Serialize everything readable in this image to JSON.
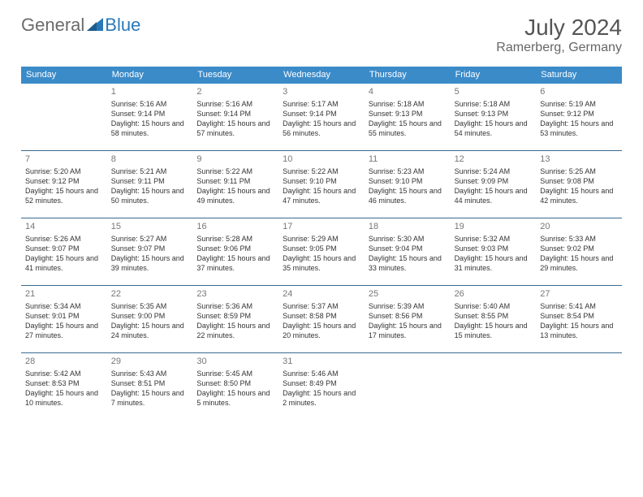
{
  "logo": {
    "general": "General",
    "blue": "Blue"
  },
  "header": {
    "title": "July 2024",
    "location": "Ramerberg, Germany"
  },
  "colors": {
    "headerBar": "#3b8bc9",
    "rowBorder": "#3b6a8f",
    "dayNum": "#777777",
    "text": "#333333"
  },
  "dow": [
    "Sunday",
    "Monday",
    "Tuesday",
    "Wednesday",
    "Thursday",
    "Friday",
    "Saturday"
  ],
  "weeks": [
    [
      null,
      {
        "n": "1",
        "sr": "Sunrise: 5:16 AM",
        "ss": "Sunset: 9:14 PM",
        "dl": "Daylight: 15 hours and 58 minutes."
      },
      {
        "n": "2",
        "sr": "Sunrise: 5:16 AM",
        "ss": "Sunset: 9:14 PM",
        "dl": "Daylight: 15 hours and 57 minutes."
      },
      {
        "n": "3",
        "sr": "Sunrise: 5:17 AM",
        "ss": "Sunset: 9:14 PM",
        "dl": "Daylight: 15 hours and 56 minutes."
      },
      {
        "n": "4",
        "sr": "Sunrise: 5:18 AM",
        "ss": "Sunset: 9:13 PM",
        "dl": "Daylight: 15 hours and 55 minutes."
      },
      {
        "n": "5",
        "sr": "Sunrise: 5:18 AM",
        "ss": "Sunset: 9:13 PM",
        "dl": "Daylight: 15 hours and 54 minutes."
      },
      {
        "n": "6",
        "sr": "Sunrise: 5:19 AM",
        "ss": "Sunset: 9:12 PM",
        "dl": "Daylight: 15 hours and 53 minutes."
      }
    ],
    [
      {
        "n": "7",
        "sr": "Sunrise: 5:20 AM",
        "ss": "Sunset: 9:12 PM",
        "dl": "Daylight: 15 hours and 52 minutes."
      },
      {
        "n": "8",
        "sr": "Sunrise: 5:21 AM",
        "ss": "Sunset: 9:11 PM",
        "dl": "Daylight: 15 hours and 50 minutes."
      },
      {
        "n": "9",
        "sr": "Sunrise: 5:22 AM",
        "ss": "Sunset: 9:11 PM",
        "dl": "Daylight: 15 hours and 49 minutes."
      },
      {
        "n": "10",
        "sr": "Sunrise: 5:22 AM",
        "ss": "Sunset: 9:10 PM",
        "dl": "Daylight: 15 hours and 47 minutes."
      },
      {
        "n": "11",
        "sr": "Sunrise: 5:23 AM",
        "ss": "Sunset: 9:10 PM",
        "dl": "Daylight: 15 hours and 46 minutes."
      },
      {
        "n": "12",
        "sr": "Sunrise: 5:24 AM",
        "ss": "Sunset: 9:09 PM",
        "dl": "Daylight: 15 hours and 44 minutes."
      },
      {
        "n": "13",
        "sr": "Sunrise: 5:25 AM",
        "ss": "Sunset: 9:08 PM",
        "dl": "Daylight: 15 hours and 42 minutes."
      }
    ],
    [
      {
        "n": "14",
        "sr": "Sunrise: 5:26 AM",
        "ss": "Sunset: 9:07 PM",
        "dl": "Daylight: 15 hours and 41 minutes."
      },
      {
        "n": "15",
        "sr": "Sunrise: 5:27 AM",
        "ss": "Sunset: 9:07 PM",
        "dl": "Daylight: 15 hours and 39 minutes."
      },
      {
        "n": "16",
        "sr": "Sunrise: 5:28 AM",
        "ss": "Sunset: 9:06 PM",
        "dl": "Daylight: 15 hours and 37 minutes."
      },
      {
        "n": "17",
        "sr": "Sunrise: 5:29 AM",
        "ss": "Sunset: 9:05 PM",
        "dl": "Daylight: 15 hours and 35 minutes."
      },
      {
        "n": "18",
        "sr": "Sunrise: 5:30 AM",
        "ss": "Sunset: 9:04 PM",
        "dl": "Daylight: 15 hours and 33 minutes."
      },
      {
        "n": "19",
        "sr": "Sunrise: 5:32 AM",
        "ss": "Sunset: 9:03 PM",
        "dl": "Daylight: 15 hours and 31 minutes."
      },
      {
        "n": "20",
        "sr": "Sunrise: 5:33 AM",
        "ss": "Sunset: 9:02 PM",
        "dl": "Daylight: 15 hours and 29 minutes."
      }
    ],
    [
      {
        "n": "21",
        "sr": "Sunrise: 5:34 AM",
        "ss": "Sunset: 9:01 PM",
        "dl": "Daylight: 15 hours and 27 minutes."
      },
      {
        "n": "22",
        "sr": "Sunrise: 5:35 AM",
        "ss": "Sunset: 9:00 PM",
        "dl": "Daylight: 15 hours and 24 minutes."
      },
      {
        "n": "23",
        "sr": "Sunrise: 5:36 AM",
        "ss": "Sunset: 8:59 PM",
        "dl": "Daylight: 15 hours and 22 minutes."
      },
      {
        "n": "24",
        "sr": "Sunrise: 5:37 AM",
        "ss": "Sunset: 8:58 PM",
        "dl": "Daylight: 15 hours and 20 minutes."
      },
      {
        "n": "25",
        "sr": "Sunrise: 5:39 AM",
        "ss": "Sunset: 8:56 PM",
        "dl": "Daylight: 15 hours and 17 minutes."
      },
      {
        "n": "26",
        "sr": "Sunrise: 5:40 AM",
        "ss": "Sunset: 8:55 PM",
        "dl": "Daylight: 15 hours and 15 minutes."
      },
      {
        "n": "27",
        "sr": "Sunrise: 5:41 AM",
        "ss": "Sunset: 8:54 PM",
        "dl": "Daylight: 15 hours and 13 minutes."
      }
    ],
    [
      {
        "n": "28",
        "sr": "Sunrise: 5:42 AM",
        "ss": "Sunset: 8:53 PM",
        "dl": "Daylight: 15 hours and 10 minutes."
      },
      {
        "n": "29",
        "sr": "Sunrise: 5:43 AM",
        "ss": "Sunset: 8:51 PM",
        "dl": "Daylight: 15 hours and 7 minutes."
      },
      {
        "n": "30",
        "sr": "Sunrise: 5:45 AM",
        "ss": "Sunset: 8:50 PM",
        "dl": "Daylight: 15 hours and 5 minutes."
      },
      {
        "n": "31",
        "sr": "Sunrise: 5:46 AM",
        "ss": "Sunset: 8:49 PM",
        "dl": "Daylight: 15 hours and 2 minutes."
      },
      null,
      null,
      null
    ]
  ]
}
